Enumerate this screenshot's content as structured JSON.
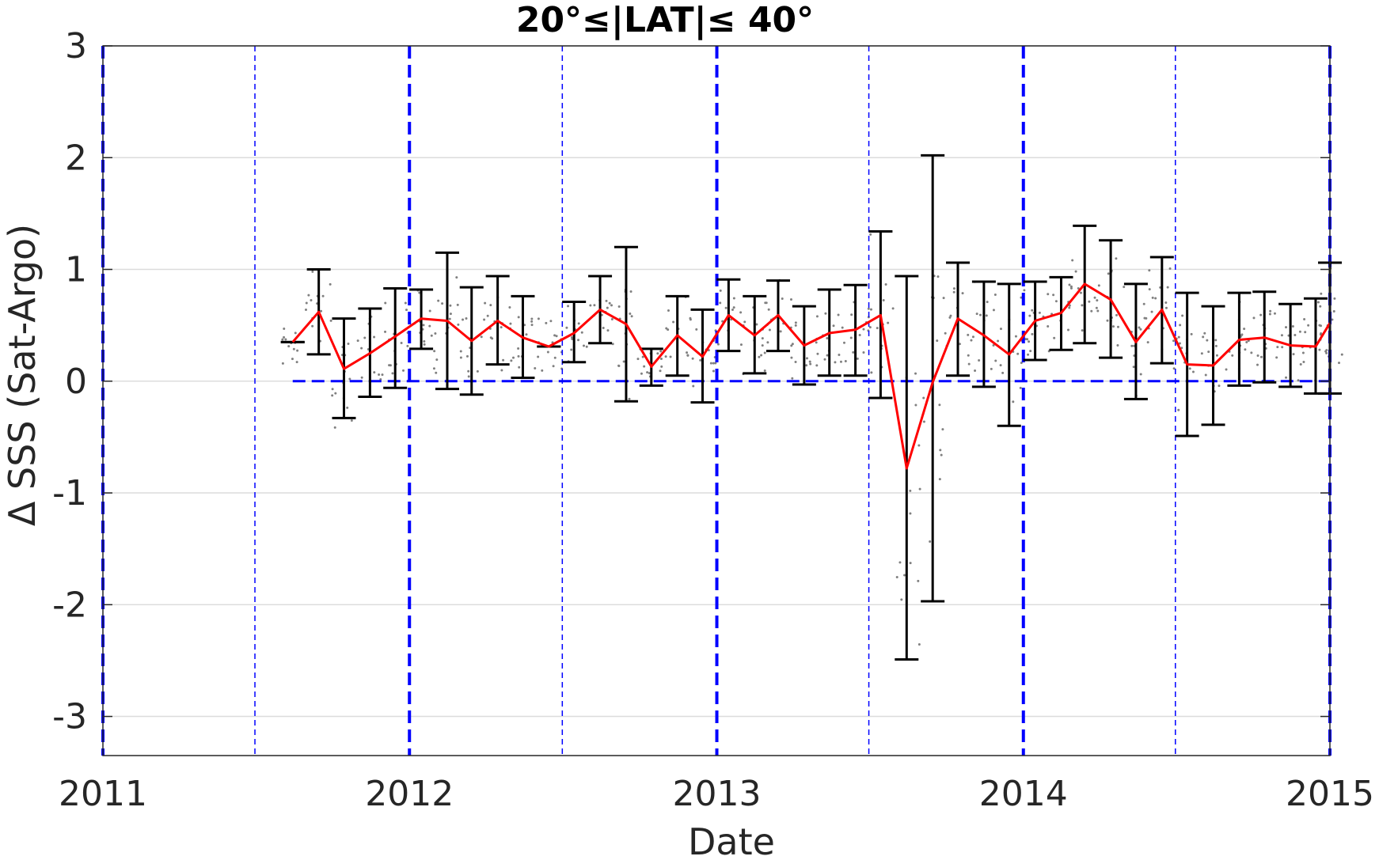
{
  "chart_data": {
    "type": "line",
    "title": "20°≤|LAT|≤ 40°",
    "xlabel": "Date",
    "ylabel": "Δ SSS (Sat-Argo)",
    "xlim": [
      "2011-01-01",
      "2015-01-01"
    ],
    "ylim": [
      -3.35,
      3
    ],
    "x_tick_labels": [
      "2011",
      "2012",
      "2013",
      "2014",
      "2015"
    ],
    "x_ticks": [
      "2011-01-01",
      "2012-01-01",
      "2013-01-01",
      "2014-01-01",
      "2015-01-01"
    ],
    "y_ticks": [
      -3,
      -2,
      -1,
      0,
      1,
      2,
      3
    ],
    "y_tick_labels": [
      "-3",
      "-2",
      "-1",
      "0",
      "1",
      "2",
      "3"
    ],
    "grid": true,
    "colors": {
      "mean_line": "#ff0000",
      "error_bars": "#000000",
      "reference_lines": "#0000ff",
      "scatter": "#808080",
      "grid": "#dcdcdc"
    },
    "reference_lines": {
      "year_dates": [
        "2011-01-01",
        "2012-01-01",
        "2013-01-01",
        "2014-01-01",
        "2015-01-01"
      ],
      "half_year_dates": [
        "2011-07-01",
        "2012-07-01",
        "2013-07-01",
        "2014-07-01"
      ],
      "zero_line": {
        "y": 0,
        "from": "2011-08-15",
        "to": "2015-01-01"
      }
    },
    "series": [
      {
        "x": [
          "2011-08-15",
          "2011-09-15",
          "2011-10-15",
          "2011-11-15",
          "2011-12-15",
          "2012-01-15",
          "2012-02-15",
          "2012-03-15",
          "2012-04-15",
          "2012-05-15",
          "2012-06-15",
          "2012-07-15",
          "2012-08-15",
          "2012-09-15",
          "2012-10-15",
          "2012-11-15",
          "2012-12-15",
          "2013-01-15",
          "2013-02-15",
          "2013-03-15",
          "2013-04-15",
          "2013-05-15",
          "2013-06-15",
          "2013-07-15",
          "2013-08-15",
          "2013-09-15",
          "2013-10-15",
          "2013-11-15",
          "2013-12-15",
          "2014-01-15",
          "2014-02-15",
          "2014-03-15",
          "2014-04-15",
          "2014-05-15",
          "2014-06-15",
          "2014-07-15",
          "2014-08-15",
          "2014-09-15",
          "2014-10-15",
          "2014-11-15",
          "2014-12-15",
          "2015-01-01"
        ],
        "y": [
          0.35,
          0.62,
          0.11,
          0.25,
          0.4,
          0.56,
          0.54,
          0.36,
          0.54,
          0.39,
          0.31,
          0.43,
          0.64,
          0.51,
          0.13,
          0.41,
          0.22,
          0.59,
          0.41,
          0.59,
          0.32,
          0.43,
          0.46,
          0.59,
          -0.78,
          -0.01,
          0.56,
          0.41,
          0.24,
          0.54,
          0.61,
          0.87,
          0.73,
          0.35,
          0.64,
          0.15,
          0.14,
          0.37,
          0.39,
          0.32,
          0.31,
          0.52
        ],
        "upper": [
          0.35,
          1.0,
          0.56,
          0.65,
          0.83,
          0.82,
          1.15,
          0.84,
          0.94,
          0.76,
          0.31,
          0.71,
          0.94,
          1.2,
          0.29,
          0.76,
          0.64,
          0.91,
          0.76,
          0.9,
          0.67,
          0.82,
          0.86,
          1.34,
          0.94,
          2.02,
          1.06,
          0.89,
          0.87,
          0.89,
          0.93,
          1.39,
          1.26,
          0.87,
          1.11,
          0.79,
          0.67,
          0.79,
          0.8,
          0.69,
          0.74,
          1.06
        ],
        "lower": [
          0.35,
          0.24,
          -0.33,
          -0.14,
          -0.06,
          0.29,
          -0.07,
          -0.12,
          0.15,
          0.03,
          0.31,
          0.17,
          0.34,
          -0.18,
          -0.04,
          0.05,
          -0.19,
          0.27,
          0.07,
          0.27,
          -0.03,
          0.05,
          0.05,
          -0.15,
          -2.49,
          -1.97,
          0.05,
          -0.05,
          -0.4,
          0.19,
          0.28,
          0.34,
          0.21,
          -0.16,
          0.16,
          -0.49,
          -0.39,
          -0.04,
          -0.01,
          -0.05,
          -0.11,
          -0.11
        ]
      }
    ]
  }
}
